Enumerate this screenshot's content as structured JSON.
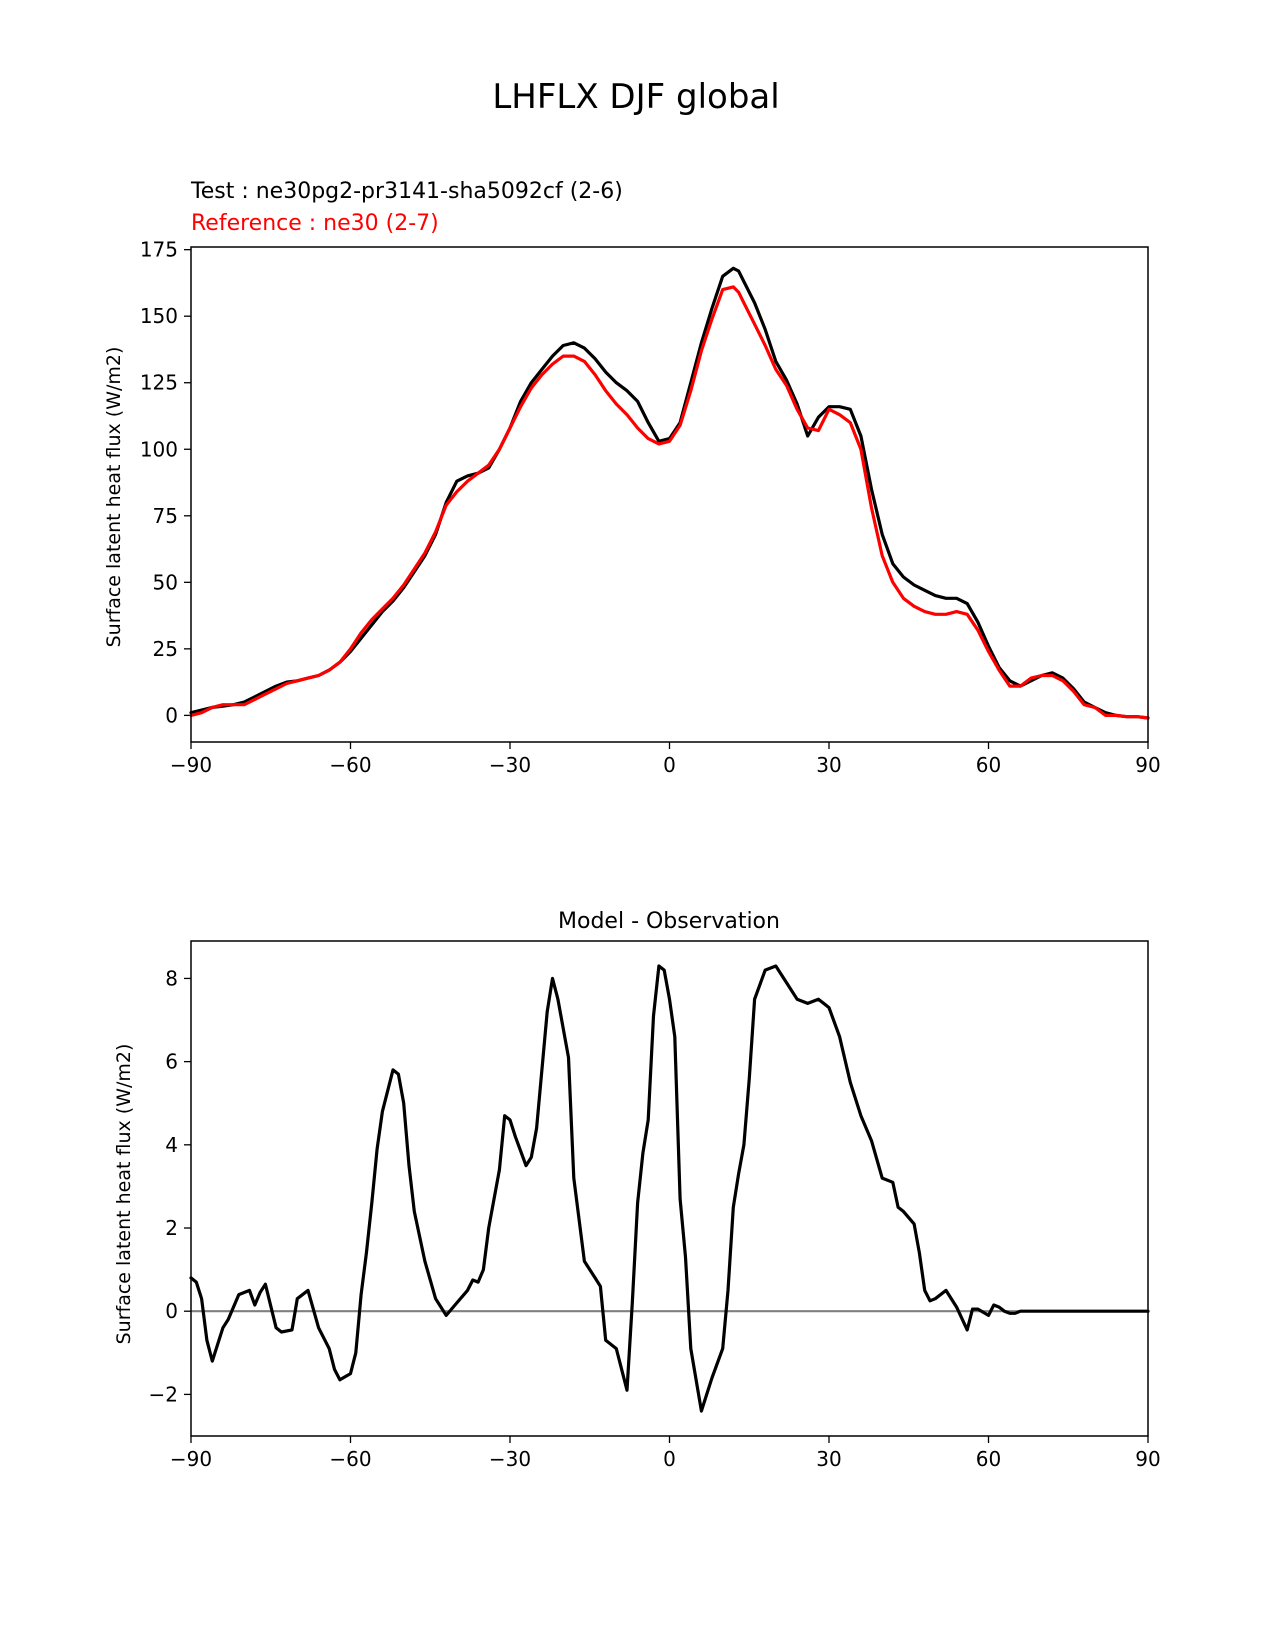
{
  "figure_title": "LHFLX DJF global",
  "chart_data": [
    {
      "type": "line",
      "test_label": "Test : ne30pg2-pr3141-sha5092cf (2-6)",
      "reference_label": "Reference : ne30 (2-7)",
      "xlabel": "",
      "ylabel": "Surface latent heat flux (W/m2)",
      "xlim": [
        -90,
        90
      ],
      "ylim": [
        -10,
        176
      ],
      "xticks": [
        -90,
        -60,
        -30,
        0,
        30,
        60,
        90
      ],
      "xtick_labels": [
        "−90",
        "−60",
        "−30",
        "0",
        "30",
        "60",
        "90"
      ],
      "yticks": [
        0,
        25,
        50,
        75,
        100,
        125,
        150,
        175
      ],
      "ytick_labels": [
        "0",
        "25",
        "50",
        "75",
        "100",
        "125",
        "150",
        "175"
      ],
      "series": [
        {
          "name": "Test",
          "color": "#000000",
          "x": [
            -90,
            -88,
            -86,
            -84,
            -82,
            -80,
            -78,
            -76,
            -74,
            -72,
            -70,
            -68,
            -66,
            -64,
            -62,
            -60,
            -58,
            -56,
            -54,
            -52,
            -50,
            -48,
            -46,
            -44,
            -42,
            -40,
            -38,
            -36,
            -34,
            -32,
            -30,
            -28,
            -26,
            -24,
            -22,
            -20,
            -18,
            -16,
            -14,
            -12,
            -10,
            -8,
            -6,
            -4,
            -2,
            0,
            2,
            4,
            6,
            8,
            10,
            12,
            13,
            14,
            16,
            18,
            20,
            22,
            24,
            26,
            28,
            30,
            32,
            34,
            36,
            38,
            40,
            42,
            44,
            46,
            48,
            50,
            52,
            54,
            56,
            58,
            60,
            62,
            64,
            66,
            68,
            70,
            72,
            74,
            76,
            78,
            80,
            82,
            84,
            86,
            88,
            90
          ],
          "y": [
            1,
            2,
            3,
            3.5,
            4,
            5,
            7,
            9,
            11,
            12.5,
            13,
            14,
            15,
            17,
            20,
            24,
            29,
            34,
            39,
            43,
            48,
            54,
            60,
            68,
            80,
            88,
            90,
            91,
            93,
            100,
            108,
            118,
            125,
            130,
            135,
            139,
            140,
            138,
            134,
            129,
            125,
            122,
            118,
            110,
            103,
            104,
            110,
            125,
            140,
            153,
            165,
            168,
            167,
            163,
            155,
            145,
            133,
            126,
            117,
            105,
            112,
            116,
            116,
            115,
            105,
            85,
            68,
            57,
            52,
            49,
            47,
            45,
            44,
            44,
            42,
            35,
            26,
            18,
            13,
            11,
            13,
            15,
            16,
            14,
            10,
            5,
            3,
            1,
            0,
            -0.5,
            -0.5,
            -1
          ]
        },
        {
          "name": "Reference",
          "color": "#ff0000",
          "x": [
            -90,
            -88,
            -86,
            -84,
            -82,
            -80,
            -78,
            -76,
            -74,
            -72,
            -70,
            -68,
            -66,
            -64,
            -62,
            -60,
            -58,
            -56,
            -54,
            -52,
            -50,
            -48,
            -46,
            -44,
            -42,
            -40,
            -38,
            -36,
            -34,
            -32,
            -30,
            -28,
            -26,
            -24,
            -22,
            -20,
            -18,
            -16,
            -14,
            -12,
            -10,
            -8,
            -6,
            -4,
            -2,
            0,
            2,
            4,
            6,
            8,
            10,
            12,
            13,
            14,
            16,
            18,
            20,
            22,
            24,
            26,
            28,
            30,
            32,
            34,
            36,
            38,
            40,
            42,
            44,
            46,
            48,
            50,
            52,
            54,
            56,
            58,
            60,
            62,
            64,
            66,
            68,
            70,
            72,
            74,
            76,
            78,
            80,
            82,
            84,
            86,
            88,
            90
          ],
          "y": [
            0,
            1,
            3,
            4,
            4,
            4,
            6,
            8,
            10,
            12,
            13,
            14,
            15,
            17,
            20,
            25,
            31,
            36,
            40,
            44,
            49,
            55,
            61,
            69,
            79,
            84,
            88,
            91,
            94,
            100,
            108,
            116,
            123,
            128,
            132,
            135,
            135,
            133,
            128,
            122,
            117,
            113,
            108,
            104,
            102,
            103,
            109,
            122,
            137,
            149,
            160,
            161,
            159,
            155,
            147,
            139,
            130,
            124,
            115,
            108,
            107,
            115,
            113,
            110,
            100,
            78,
            60,
            50,
            44,
            41,
            39,
            38,
            38,
            39,
            38,
            32,
            24,
            17,
            11,
            11,
            14,
            15,
            15,
            13,
            9,
            4,
            3,
            0,
            0,
            -0.5,
            -0.5,
            -1
          ]
        }
      ]
    },
    {
      "type": "line",
      "title": "Model - Observation",
      "xlabel": "",
      "ylabel": "Surface latent heat flux (W/m2)",
      "xlim": [
        -90,
        90
      ],
      "ylim": [
        -3,
        8.9
      ],
      "xticks": [
        -90,
        -60,
        -30,
        0,
        30,
        60,
        90
      ],
      "xtick_labels": [
        "−90",
        "−60",
        "−30",
        "0",
        "30",
        "60",
        "90"
      ],
      "yticks": [
        -2,
        0,
        2,
        4,
        6,
        8
      ],
      "ytick_labels": [
        "−2",
        "0",
        "2",
        "4",
        "6",
        "8"
      ],
      "zero_line_color": "#808080",
      "series": [
        {
          "name": "Model - Observation",
          "color": "#000000",
          "x": [
            -90,
            -89,
            -88,
            -87,
            -86,
            -84,
            -83,
            -81,
            -79,
            -78,
            -77,
            -76,
            -74,
            -73,
            -71,
            -70,
            -68,
            -67,
            -66,
            -64,
            -63,
            -62,
            -60,
            -59,
            -58,
            -57,
            -56,
            -55,
            -54,
            -52,
            -51,
            -50,
            -49,
            -48,
            -46,
            -44,
            -42,
            -40,
            -38,
            -37,
            -36,
            -35,
            -34,
            -32,
            -31,
            -30,
            -29,
            -27,
            -26,
            -25,
            -23,
            -22,
            -21,
            -19,
            -18,
            -16,
            -14,
            -13,
            -12,
            -10,
            -8,
            -7,
            -6,
            -5,
            -4,
            -3,
            -2,
            -1,
            0,
            1,
            2,
            3,
            4,
            6,
            8,
            10,
            11,
            12,
            13,
            14,
            15,
            16,
            18,
            20,
            22,
            24,
            26,
            28,
            29,
            30,
            32,
            34,
            36,
            38,
            40,
            42,
            43,
            44,
            46,
            47,
            48,
            49,
            50,
            52,
            54,
            56,
            57,
            58,
            60,
            61,
            62,
            63,
            64,
            65,
            66,
            68,
            70,
            72,
            74,
            75,
            76,
            78,
            80,
            82,
            84,
            86,
            88,
            90
          ],
          "y": [
            0.8,
            0.7,
            0.3,
            -0.7,
            -1.2,
            -0.4,
            -0.2,
            0.4,
            0.5,
            0.15,
            0.45,
            0.65,
            -0.4,
            -0.5,
            -0.45,
            0.3,
            0.5,
            0.05,
            -0.4,
            -0.9,
            -1.4,
            -1.65,
            -1.5,
            -1.0,
            0.4,
            1.4,
            2.6,
            3.9,
            4.8,
            5.8,
            5.7,
            5.0,
            3.5,
            2.4,
            1.2,
            0.3,
            -0.1,
            0.2,
            0.5,
            0.75,
            0.7,
            1.0,
            2.0,
            3.4,
            4.7,
            4.6,
            4.2,
            3.5,
            3.7,
            4.4,
            7.2,
            8.0,
            7.5,
            6.1,
            3.2,
            1.2,
            0.8,
            0.6,
            -0.7,
            -0.9,
            -1.9,
            0.2,
            2.6,
            3.8,
            4.6,
            7.1,
            8.3,
            8.2,
            7.5,
            6.6,
            2.7,
            1.3,
            -0.9,
            -2.4,
            -1.6,
            -0.9,
            0.5,
            2.5,
            3.3,
            4.0,
            5.6,
            7.5,
            8.2,
            8.3,
            7.9,
            7.5,
            7.4,
            7.5,
            7.4,
            7.3,
            6.6,
            5.5,
            4.7,
            4.1,
            3.2,
            3.1,
            2.5,
            2.4,
            2.1,
            1.4,
            0.5,
            0.25,
            0.3,
            0.5,
            0.1,
            -0.45,
            0.05,
            0.05,
            -0.1,
            0.15,
            0.1,
            0.0,
            -0.05,
            -0.05,
            0.0,
            0.0,
            0.0,
            0.0,
            0.0,
            0.0,
            0.0,
            0.0,
            0.0,
            0.0,
            0.0,
            0.0,
            0.0,
            0.0
          ]
        }
      ]
    }
  ]
}
